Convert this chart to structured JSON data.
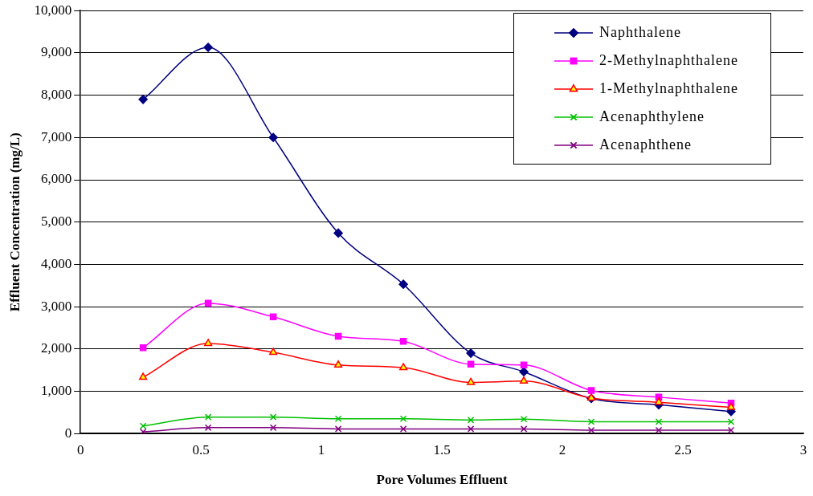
{
  "chart_data": {
    "type": "line",
    "xlabel": "Pore Volumes Effluent",
    "ylabel": "Effluent Concentration (mg/L)",
    "x": [
      0.26,
      0.53,
      0.8,
      1.07,
      1.34,
      1.62,
      1.84,
      2.12,
      2.4,
      2.7
    ],
    "series": [
      {
        "name": "Naphthalene",
        "color": "#000080",
        "marker": "diamond",
        "values": [
          7900,
          9130,
          7000,
          4740,
          3530,
          1900,
          1460,
          830,
          680,
          520
        ]
      },
      {
        "name": "2-Methylnaphthalene",
        "color": "#ff00ff",
        "marker": "square",
        "values": [
          2030,
          3080,
          2760,
          2300,
          2180,
          1640,
          1620,
          1020,
          860,
          720
        ]
      },
      {
        "name": "1-Methylnaphthalene",
        "color": "#ff0000",
        "marker": "triangle",
        "values": [
          1330,
          2130,
          1920,
          1620,
          1560,
          1210,
          1240,
          840,
          740,
          620
        ]
      },
      {
        "name": "Acenaphthylene",
        "color": "#00c000",
        "marker": "cross",
        "values": [
          180,
          390,
          390,
          350,
          350,
          320,
          340,
          280,
          280,
          280
        ]
      },
      {
        "name": "Acenaphthene",
        "color": "#800080",
        "marker": "cross",
        "values": [
          40,
          140,
          140,
          110,
          110,
          110,
          110,
          80,
          80,
          80
        ]
      }
    ],
    "xlim": [
      0,
      3
    ],
    "xticks": [
      0,
      0.5,
      1,
      1.5,
      2,
      2.5,
      3
    ],
    "ylim": [
      0,
      10000
    ],
    "yticks": [
      {
        "value": 0,
        "label": "0"
      },
      {
        "value": 1000,
        "label": "1,000"
      },
      {
        "value": 2000,
        "label": "2,000"
      },
      {
        "value": 3000,
        "label": "3,000"
      },
      {
        "value": 4000,
        "label": "4,000"
      },
      {
        "value": 5000,
        "label": "5,000"
      },
      {
        "value": 6000,
        "label": "6,000"
      },
      {
        "value": 7000,
        "label": "7,000"
      },
      {
        "value": 8000,
        "label": "8,000"
      },
      {
        "value": 9000,
        "label": "9,000"
      },
      {
        "value": 10000,
        "label": "10,000"
      }
    ],
    "grid": "y",
    "legend": "top right",
    "line_style": "solid"
  }
}
